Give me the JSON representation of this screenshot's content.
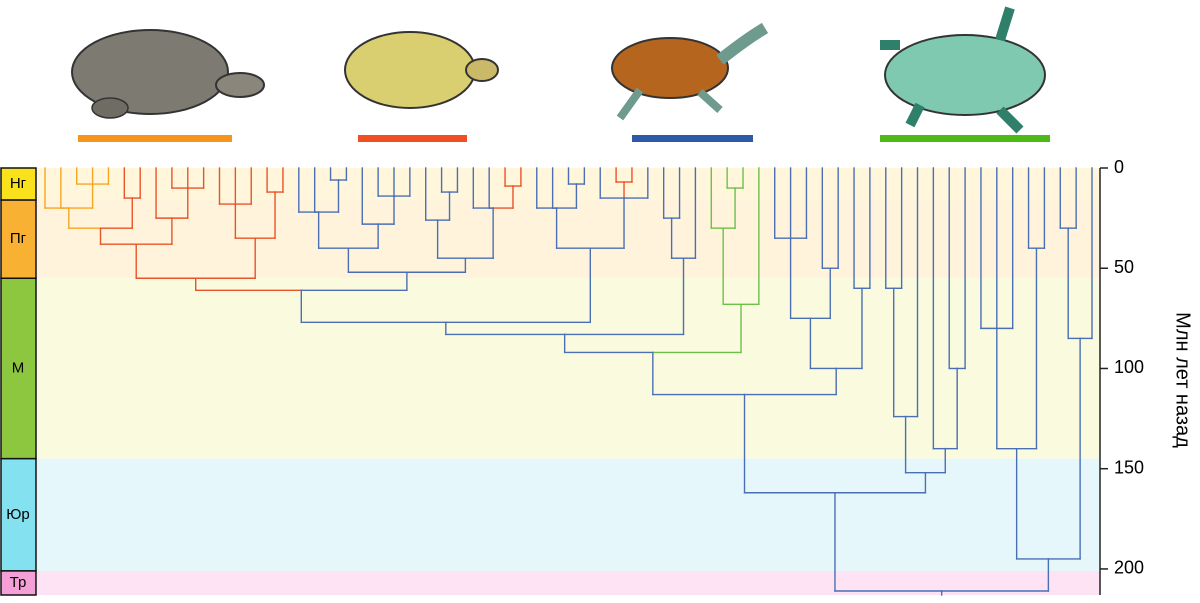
{
  "chart_data": {
    "type": "dendrogram",
    "y_label": "Млн лет назад",
    "ylim": [
      0,
      213
    ],
    "yticks": [
      0,
      50,
      100,
      150,
      200
    ],
    "periods": [
      {
        "label": "Нг",
        "start": 0,
        "end": 16,
        "color": "#f9e21c",
        "background": "#fff6dc"
      },
      {
        "label": "Пг",
        "start": 16,
        "end": 55,
        "color": "#f8b133",
        "background": "#fff3dc"
      },
      {
        "label": "М",
        "start": 55,
        "end": 145,
        "color": "#8dc63f",
        "background": "#fafadf"
      },
      {
        "label": "Юр",
        "start": 145,
        "end": 201,
        "color": "#84e1ef",
        "background": "#e6f7fb"
      },
      {
        "label": "Тр",
        "start": 201,
        "end": 213,
        "color": "#f59fd9",
        "background": "#fde3f4"
      }
    ],
    "tree": {
      "age": 211,
      "color": "#4a6fb5",
      "children": [
        {
          "age": 162,
          "children": [
            {
              "age": 113,
              "children": [
                {
                  "age": 92,
                  "children": [
                    {
                      "age": 83,
                      "children": [
                        {
                          "age": 77,
                          "children": [
                            {
                              "age": 61,
                              "children": [
                                {
                                  "age": 55,
                                  "color": "#e8542a",
                                  "children": [
                                    {
                                      "age": 38,
                                      "children": [
                                        {
                                          "age": 30,
                                          "children": [
                                            {
                                              "age": 20,
                                              "color": "#f5a623",
                                              "children": [
                                                0,
                                                0,
                                                {
                                                  "age": 8,
                                                  "children": [
                                                    0,
                                                    0,
                                                    0
                                                  ]
                                                }
                                              ]
                                            },
                                            {
                                              "age": 15,
                                              "children": [
                                                0,
                                                0
                                              ]
                                            }
                                          ]
                                        },
                                        {
                                          "age": 25,
                                          "children": [
                                            0,
                                            {
                                              "age": 10,
                                              "children": [
                                                0,
                                                0,
                                                0
                                              ]
                                            }
                                          ]
                                        }
                                      ]
                                    },
                                    {
                                      "age": 35,
                                      "children": [
                                        {
                                          "age": 18,
                                          "children": [
                                            0,
                                            0,
                                            0
                                          ]
                                        },
                                        {
                                          "age": 12,
                                          "children": [
                                            0,
                                            0
                                          ]
                                        }
                                      ]
                                    }
                                  ]
                                },
                                {
                                  "age": 52,
                                  "children": [
                                    {
                                      "age": 40,
                                      "children": [
                                        {
                                          "age": 22,
                                          "children": [
                                            0,
                                            0,
                                            {
                                              "age": 6,
                                              "children": [
                                                0,
                                                0
                                              ]
                                            }
                                          ]
                                        },
                                        {
                                          "age": 28,
                                          "children": [
                                            0,
                                            {
                                              "age": 14,
                                              "children": [
                                                0,
                                                0,
                                                0
                                              ]
                                            }
                                          ]
                                        }
                                      ]
                                    },
                                    {
                                      "age": 45,
                                      "children": [
                                        {
                                          "age": 26,
                                          "children": [
                                            0,
                                            {
                                              "age": 12,
                                              "children": [
                                                0,
                                                0
                                              ]
                                            }
                                          ]
                                        },
                                        {
                                          "age": 20,
                                          "children": [
                                            0,
                                            0,
                                            {
                                              "age": 9,
                                              "color": "#e8542a",
                                              "children": [
                                                0,
                                                0
                                              ]
                                            }
                                          ]
                                        }
                                      ]
                                    }
                                  ]
                                }
                              ]
                            },
                            {
                              "age": 40,
                              "children": [
                                {
                                  "age": 20,
                                  "children": [
                                    0,
                                    0,
                                    {
                                      "age": 8,
                                      "children": [
                                        0,
                                        0
                                      ]
                                    }
                                  ]
                                },
                                {
                                  "age": 15,
                                  "children": [
                                    0,
                                    {
                                      "age": 7,
                                      "color": "#e8542a",
                                      "children": [
                                        0,
                                        0
                                      ]
                                    },
                                    0
                                  ]
                                }
                              ]
                            }
                          ]
                        },
                        {
                          "age": 45,
                          "children": [
                            {
                              "age": 25,
                              "children": [
                                0,
                                0
                              ]
                            },
                            0
                          ]
                        }
                      ]
                    },
                    {
                      "age": 68,
                      "color": "#6cc04a",
                      "children": [
                        {
                          "age": 30,
                          "children": [
                            0,
                            {
                              "age": 10,
                              "children": [
                                0,
                                0
                              ]
                            }
                          ]
                        },
                        0
                      ]
                    }
                  ]
                },
                {
                  "age": 100,
                  "children": [
                    {
                      "age": 75,
                      "children": [
                        {
                          "age": 35,
                          "children": [
                            0,
                            0,
                            0
                          ]
                        },
                        {
                          "age": 50,
                          "children": [
                            0,
                            0
                          ]
                        }
                      ]
                    },
                    {
                      "age": 60,
                      "children": [
                        0,
                        0
                      ]
                    }
                  ]
                }
              ]
            },
            {
              "age": 152,
              "children": [
                {
                  "age": 124,
                  "children": [
                    {
                      "age": 60,
                      "children": [
                        0,
                        0
                      ]
                    },
                    0
                  ]
                },
                {
                  "age": 140,
                  "children": [
                    0,
                    {
                      "age": 100,
                      "children": [
                        0,
                        0
                      ]
                    }
                  ]
                }
              ]
            }
          ]
        },
        {
          "age": 195,
          "children": [
            {
              "age": 140,
              "children": [
                {
                  "age": 80,
                  "children": [
                    0,
                    0,
                    0
                  ]
                },
                {
                  "age": 40,
                  "children": [
                    0,
                    0
                  ]
                }
              ]
            },
            {
              "age": 85,
              "children": [
                {
                  "age": 30,
                  "children": [
                    0,
                    0
                  ]
                },
                0
              ]
            }
          ]
        }
      ]
    }
  }
}
